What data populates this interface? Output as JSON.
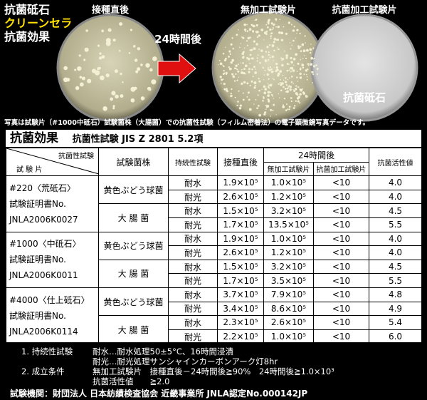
{
  "header": {
    "brand": [
      "抗菌砥石",
      "クリーンセラ",
      "抗菌効果"
    ],
    "dish_labels": [
      "接種直後",
      "無加工試験片",
      "抗菌加工試験片"
    ],
    "arrow_label": "24時間後",
    "dish_caption": "抗菌砥石",
    "caption": "写真は試験片（#1000中砥石）試験菌株（大腸菌）での抗菌性試験（フィルム密着法）の電子顕微鏡写真データです。"
  },
  "table": {
    "title": "抗菌効果",
    "subtitle": "抗菌性試験 JIS Z 2801 5.2項",
    "columns": {
      "corner_top": "抗菌性試験",
      "corner_bottom": "試 験 片",
      "strain": "試験菌株",
      "durability": "持続性試験",
      "initial": "接種直後",
      "after": "24時間後",
      "untreated": "無加工試験片",
      "treated": "抗菌加工試験片",
      "activity": "抗菌活性値"
    },
    "groups": [
      {
        "sample": [
          "#220〈荒砥石〉",
          "試験証明書No.",
          "JNLA2006K0027"
        ],
        "strains": [
          {
            "name": "黄色ぶどう球菌",
            "rows": [
              {
                "durability": "耐水",
                "initial": "1.9×10⁵",
                "untreated": "1.0×10⁵",
                "treated": "<10",
                "activity": "4.0"
              },
              {
                "durability": "耐光",
                "initial": "2.6×10⁵",
                "untreated": "1.2×10⁵",
                "treated": "<10",
                "activity": "4.0"
              }
            ]
          },
          {
            "name": "大 腸 菌",
            "rows": [
              {
                "durability": "耐水",
                "initial": "1.5×10⁵",
                "untreated": "3.2×10⁵",
                "treated": "<10",
                "activity": "4.5"
              },
              {
                "durability": "耐光",
                "initial": "1.7×10⁵",
                "untreated": "13.5×10⁵",
                "treated": "<10",
                "activity": "5.5"
              }
            ]
          }
        ]
      },
      {
        "sample": [
          "#1000〈中砥石〉",
          "試験証明書No.",
          "JNLA2006K0011"
        ],
        "strains": [
          {
            "name": "黄色ぶどう球菌",
            "rows": [
              {
                "durability": "耐水",
                "initial": "1.9×10⁵",
                "untreated": "1.0×10⁵",
                "treated": "<10",
                "activity": "4.0"
              },
              {
                "durability": "耐光",
                "initial": "2.6×10⁵",
                "untreated": "1.2×10⁵",
                "treated": "<10",
                "activity": "4.0"
              }
            ]
          },
          {
            "name": "大 腸 菌",
            "rows": [
              {
                "durability": "耐水",
                "initial": "1.5×10⁵",
                "untreated": "3.2×10⁵",
                "treated": "<10",
                "activity": "4.5"
              },
              {
                "durability": "耐光",
                "initial": "1.7×10⁵",
                "untreated": "3.5×10⁵",
                "treated": "<10",
                "activity": "5.5"
              }
            ]
          }
        ]
      },
      {
        "sample": [
          "#4000〈仕上砥石〉",
          "試験証明書No.",
          "JNLA2006K0114"
        ],
        "strains": [
          {
            "name": "黄色ぶどう球菌",
            "rows": [
              {
                "durability": "耐水",
                "initial": "3.7×10⁵",
                "untreated": "7.9×10⁵",
                "treated": "<10",
                "activity": "4.8"
              },
              {
                "durability": "耐光",
                "initial": "3.4×10⁵",
                "untreated": "8.6×10⁵",
                "treated": "<10",
                "activity": "4.9"
              }
            ]
          },
          {
            "name": "大 腸 菌",
            "rows": [
              {
                "durability": "耐水",
                "initial": "2.3×10⁵",
                "untreated": "2.6×10⁵",
                "treated": "<10",
                "activity": "5.4"
              },
              {
                "durability": "耐光",
                "initial": "2.2×10⁵",
                "untreated": "1.0×10⁵",
                "treated": "<10",
                "activity": "6.0"
              }
            ]
          }
        ]
      }
    ]
  },
  "notes": [
    {
      "label": "1. 持続性試験",
      "lines": [
        "耐水…耐水処理50±5°C、16時間浸漬",
        "耐光…耐光処理サンシャインカーボンアーク灯8hr"
      ]
    },
    {
      "label": "2. 成立条件",
      "lines": [
        "無加工試験片　接種直後－24時間後≧90%　24時間後≧1.0×10³",
        "抗菌活性値　　≧2.0"
      ]
    }
  ],
  "footer": "試験機関：財団法人 日本紡績検査協会 近畿事業所 JNLA認定No.000142JP"
}
